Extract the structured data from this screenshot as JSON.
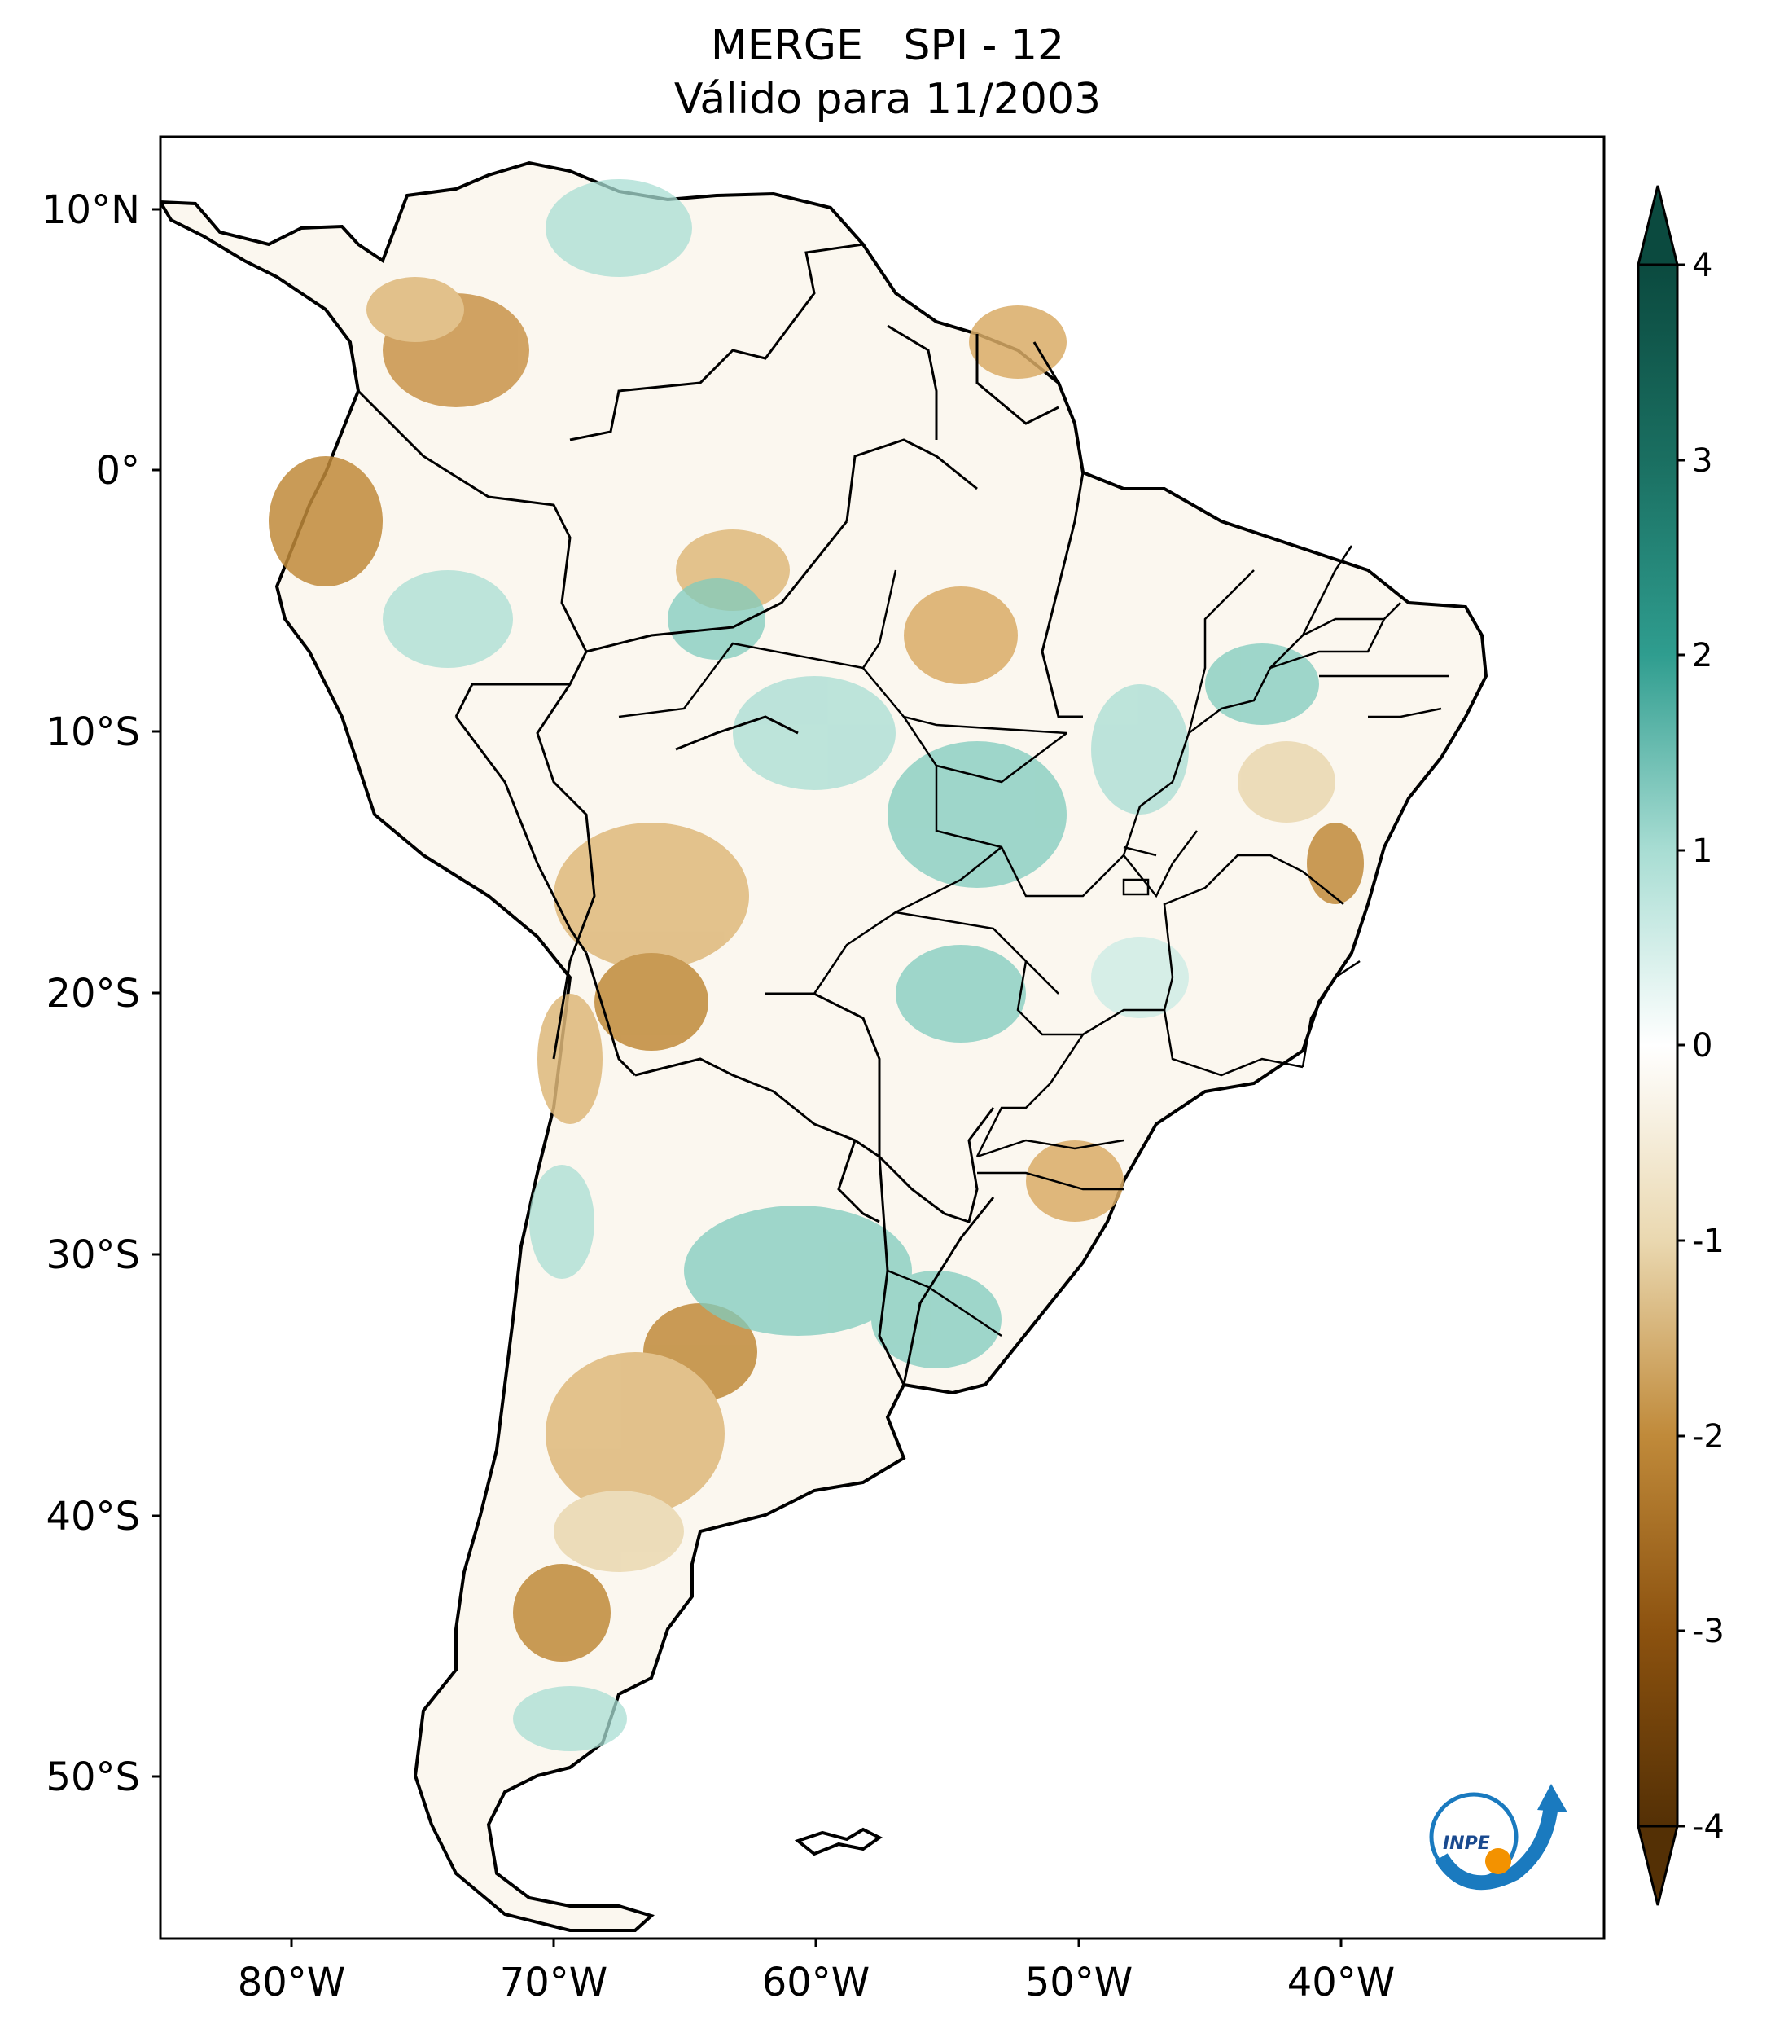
{
  "title": {
    "line1": "MERGE   SPI - 12",
    "line2": "Válido para 11/2003"
  },
  "map": {
    "region": "South America",
    "lat_ticks": [
      "10°N",
      "0°",
      "10°S",
      "20°S",
      "30°S",
      "40°S",
      "50°S"
    ],
    "lon_ticks": [
      "80°W",
      "70°W",
      "60°W",
      "50°W",
      "40°W"
    ],
    "extent": {
      "lon": [
        -85,
        -30
      ],
      "lat": [
        -56,
        13
      ]
    }
  },
  "colorbar": {
    "ticks": [
      "4",
      "3",
      "2",
      "1",
      "0",
      "-1",
      "-2",
      "-3",
      "-4"
    ],
    "range": [
      -4,
      4
    ],
    "extend": "both",
    "colors": {
      "max": "#0b4a3f",
      "high": "#2f9d8f",
      "mid_high": "#a8ddd3",
      "zero": "#ffffff",
      "mid_low": "#ead8b0",
      "low": "#c08a3a",
      "min": "#543005"
    }
  },
  "logo": {
    "text": "INPE"
  }
}
